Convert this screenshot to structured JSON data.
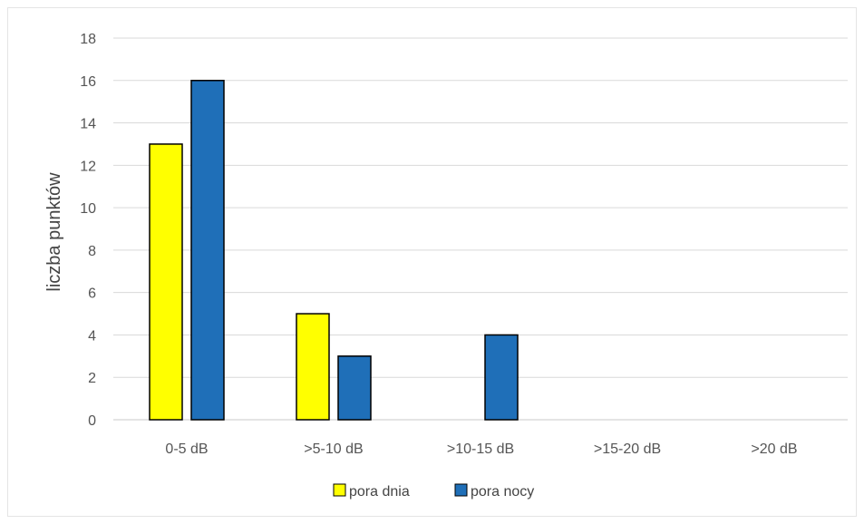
{
  "chart_data": {
    "type": "bar",
    "title": "",
    "xlabel": "",
    "ylabel": "liczba punktów",
    "categories": [
      "0-5 dB",
      ">5-10 dB",
      ">10-15 dB",
      ">15-20 dB",
      ">20 dB"
    ],
    "series": [
      {
        "name": "pora dnia",
        "color": "#ffff00",
        "values": [
          13,
          5,
          0,
          0,
          0
        ]
      },
      {
        "name": "pora nocy",
        "color": "#1f6fb8",
        "values": [
          16,
          3,
          4,
          0,
          0
        ]
      }
    ],
    "ylim": [
      0,
      18
    ],
    "yticks": [
      0,
      2,
      4,
      6,
      8,
      10,
      12,
      14,
      16,
      18
    ],
    "grid": true,
    "legend_position": "bottom"
  }
}
